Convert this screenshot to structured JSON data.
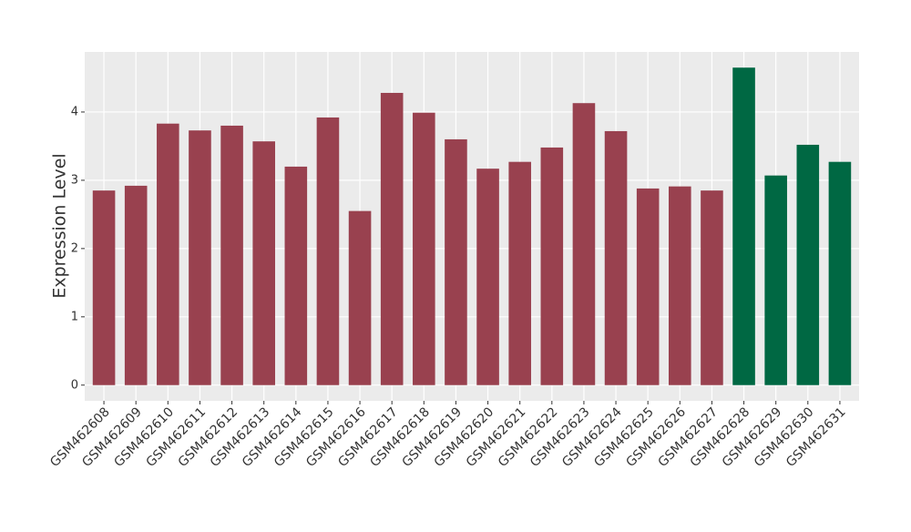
{
  "chart_data": {
    "type": "bar",
    "y_label": "Expression Level",
    "categories": [
      "GSM462608",
      "GSM462609",
      "GSM462610",
      "GSM462611",
      "GSM462612",
      "GSM462613",
      "GSM462614",
      "GSM462615",
      "GSM462616",
      "GSM462617",
      "GSM462618",
      "GSM462619",
      "GSM462620",
      "GSM462621",
      "GSM462622",
      "GSM462623",
      "GSM462624",
      "GSM462625",
      "GSM462626",
      "GSM462627",
      "GSM462628",
      "GSM462629",
      "GSM462630",
      "GSM462631"
    ],
    "values": [
      2.85,
      2.92,
      3.83,
      3.73,
      3.8,
      3.57,
      3.2,
      3.92,
      2.55,
      4.28,
      3.99,
      3.6,
      3.17,
      3.27,
      3.48,
      4.13,
      3.72,
      2.88,
      2.91,
      2.85,
      4.65,
      3.07,
      3.52,
      3.27
    ],
    "colors": [
      "#99414f",
      "#99414f",
      "#99414f",
      "#99414f",
      "#99414f",
      "#99414f",
      "#99414f",
      "#99414f",
      "#99414f",
      "#99414f",
      "#99414f",
      "#99414f",
      "#99414f",
      "#99414f",
      "#99414f",
      "#99414f",
      "#99414f",
      "#99414f",
      "#99414f",
      "#99414f",
      "#006843",
      "#006843",
      "#006843",
      "#006843"
    ],
    "ylim": [
      -0.23,
      4.88
    ],
    "yticks": [
      0,
      1,
      2,
      3,
      4
    ],
    "grid": true
  }
}
